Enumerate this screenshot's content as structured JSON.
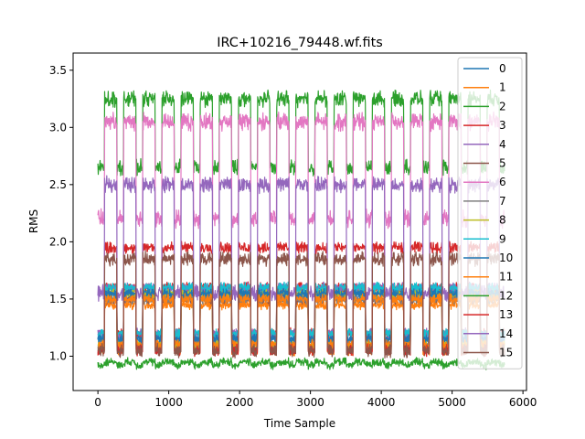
{
  "chart_data": {
    "type": "line",
    "title": "IRC+10216_79448.wf.fits",
    "xlabel": "Time Sample",
    "ylabel": "RMS",
    "xlim": [
      -350,
      6050
    ],
    "ylim": [
      0.7,
      3.65
    ],
    "x_ticks": [
      0,
      1000,
      2000,
      3000,
      4000,
      5000,
      6000
    ],
    "x_tick_labels": [
      "0",
      "1000",
      "2000",
      "3000",
      "4000",
      "5000",
      "6000"
    ],
    "y_ticks": [
      1.0,
      1.5,
      2.0,
      2.5,
      3.0,
      3.5
    ],
    "y_tick_labels": [
      "1.0",
      "1.5",
      "2.0",
      "2.5",
      "3.0",
      "3.5"
    ],
    "grid": false,
    "legend_position": "upper right",
    "cycle": {
      "period_samples": 270,
      "first_on_start": 95,
      "on_length": 175,
      "last_sample": 5740
    },
    "series": [
      {
        "name": "0",
        "color": "#1f77b4",
        "off_level": 1.15,
        "on_level": 1.55,
        "noise": 0.05
      },
      {
        "name": "1",
        "color": "#ff7f0e",
        "off_level": 1.05,
        "on_level": 1.45,
        "noise": 0.05
      },
      {
        "name": "2",
        "color": "#2ca02c",
        "off_level": 2.65,
        "on_level": 3.25,
        "noise": 0.08
      },
      {
        "name": "3",
        "color": "#d62728",
        "off_level": 1.2,
        "on_level": 1.6,
        "noise": 0.05
      },
      {
        "name": "4",
        "color": "#9467bd",
        "off_level": 1.2,
        "on_level": 1.6,
        "noise": 0.05
      },
      {
        "name": "5",
        "color": "#8c564b",
        "off_level": 1.05,
        "on_level": 1.5,
        "noise": 0.05
      },
      {
        "name": "6",
        "color": "#e377c2",
        "off_level": 2.2,
        "on_level": 3.05,
        "noise": 0.09
      },
      {
        "name": "7",
        "color": "#7f7f7f",
        "off_level": 1.1,
        "on_level": 1.5,
        "noise": 0.05
      },
      {
        "name": "8",
        "color": "#bcbd22",
        "off_level": 1.1,
        "on_level": 1.55,
        "noise": 0.05
      },
      {
        "name": "9",
        "color": "#17becf",
        "off_level": 1.2,
        "on_level": 1.6,
        "noise": 0.05
      },
      {
        "name": "10",
        "color": "#1f77b4",
        "off_level": 1.15,
        "on_level": 1.55,
        "noise": 0.05
      },
      {
        "name": "11",
        "color": "#ff7f0e",
        "off_level": 1.1,
        "on_level": 1.5,
        "noise": 0.05
      },
      {
        "name": "12",
        "color": "#2ca02c",
        "off_level": 0.92,
        "on_level": 0.95,
        "noise": 0.04
      },
      {
        "name": "13",
        "color": "#d62728",
        "off_level": 1.05,
        "on_level": 1.95,
        "noise": 0.06
      },
      {
        "name": "14",
        "color": "#9467bd",
        "off_level": 1.55,
        "on_level": 2.5,
        "noise": 0.08
      },
      {
        "name": "15",
        "color": "#8c564b",
        "off_level": 1.05,
        "on_level": 1.85,
        "noise": 0.07
      }
    ]
  }
}
